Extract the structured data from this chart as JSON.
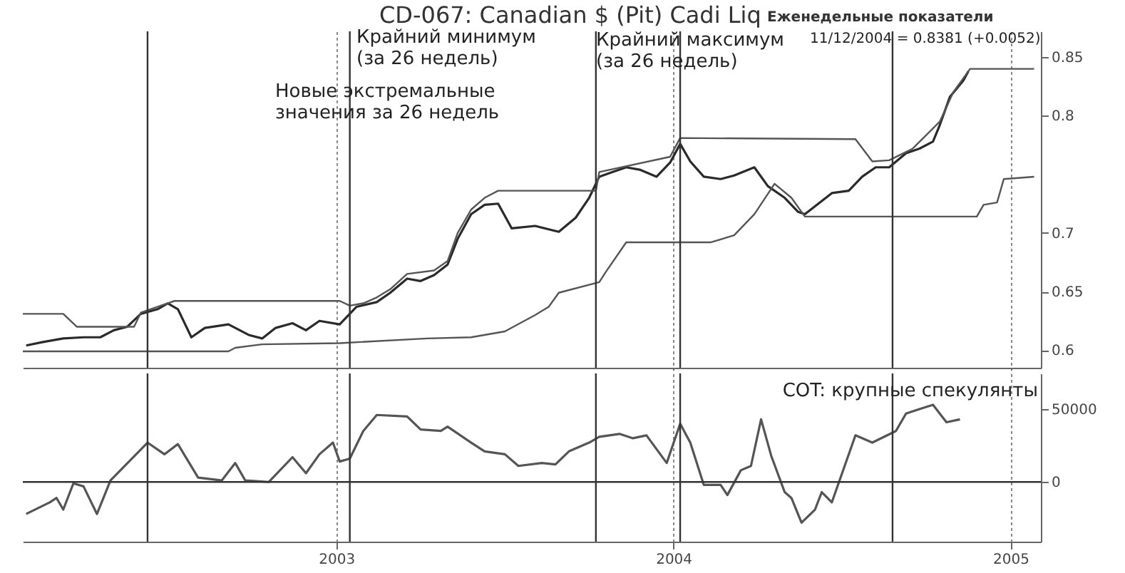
{
  "chart_data": [
    {
      "type": "line",
      "title": "CD-067:  Canadian $ (Pit) Cadi Liq",
      "subtitle": "Еженедельные показатели",
      "annotations": [
        "11/12/2004 = 0.8381 (+0.0052)",
        "Крайний минимум\n(за 26 недель)",
        "Крайний максимум\n(за 26 недель)",
        "Новые экстремальные\nзначения за 26 недель"
      ],
      "xlim": [
        2002.07,
        2005.09
      ],
      "xticks": [
        2003,
        2004,
        2005
      ],
      "ylim": [
        0.585,
        0.872
      ],
      "yticks": [
        0.6,
        0.65,
        0.7,
        0.8,
        0.85
      ],
      "grid": "x",
      "tick_labels": "y",
      "line_style": "solid",
      "ref_lines": [
        {
          "axis": "x",
          "value": 2002.44,
          "color": "#333333"
        },
        {
          "axis": "x",
          "value": 2003.04,
          "color": "#333333"
        },
        {
          "axis": "x",
          "value": 2003.77,
          "color": "#333333"
        },
        {
          "axis": "x",
          "value": 2004.02,
          "color": "#333333"
        },
        {
          "axis": "x",
          "value": 2004.65,
          "color": "#333333"
        }
      ],
      "series": [
        {
          "color": "#2a2a2a",
          "x": [
            2002.08,
            2002.13,
            2002.19,
            2002.25,
            2002.3,
            2002.34,
            2002.38,
            2002.42,
            2002.47,
            2002.5,
            2002.53,
            2002.57,
            2002.61,
            2002.68,
            2002.74,
            2002.78,
            2002.82,
            2002.87,
            2002.91,
            2002.95,
            2003.01,
            2003.06,
            2003.12,
            2003.16,
            2003.21,
            2003.25,
            2003.29,
            2003.33,
            2003.36,
            2003.4,
            2003.44,
            2003.48,
            2003.52,
            2003.59,
            2003.66,
            2003.71,
            2003.75,
            2003.78,
            2003.82,
            2003.86,
            2003.9,
            2003.95,
            2003.99,
            2004.02,
            2004.05,
            2004.09,
            2004.14,
            2004.18,
            2004.24,
            2004.28,
            2004.33,
            2004.37,
            2004.39,
            2004.43,
            2004.47,
            2004.52,
            2004.56,
            2004.6,
            2004.64,
            2004.69,
            2004.73,
            2004.77,
            2004.79,
            2004.82,
            2004.86,
            2004.875
          ],
          "values": [
            0.604,
            0.607,
            0.61,
            0.611,
            0.611,
            0.617,
            0.62,
            0.631,
            0.635,
            0.64,
            0.635,
            0.611,
            0.619,
            0.622,
            0.613,
            0.61,
            0.619,
            0.623,
            0.617,
            0.625,
            0.622,
            0.637,
            0.641,
            0.649,
            0.661,
            0.659,
            0.664,
            0.673,
            0.695,
            0.716,
            0.724,
            0.725,
            0.704,
            0.706,
            0.701,
            0.713,
            0.73,
            0.748,
            0.752,
            0.756,
            0.754,
            0.748,
            0.76,
            0.776,
            0.761,
            0.748,
            0.746,
            0.749,
            0.756,
            0.74,
            0.73,
            0.718,
            0.716,
            0.725,
            0.734,
            0.736,
            0.748,
            0.756,
            0.756,
            0.768,
            0.772,
            0.778,
            0.792,
            0.816,
            0.83,
            0.838
          ]
        },
        {
          "color": "#555555",
          "x": [
            2002.07,
            2002.19,
            2002.23,
            2002.4,
            2002.42,
            2002.47,
            2002.52,
            2003.01,
            2003.04,
            2003.08,
            2003.12,
            2003.16,
            2003.21,
            2003.29,
            2003.33,
            2003.36,
            2003.4,
            2003.44,
            2003.48,
            2003.77,
            2003.78,
            2003.99,
            2004.02,
            2004.54,
            2004.59,
            2004.64,
            2004.71,
            2004.79,
            2004.83,
            2004.88,
            2005.07
          ],
          "values": [
            0.631,
            0.631,
            0.62,
            0.62,
            0.632,
            0.637,
            0.642,
            0.642,
            0.638,
            0.64,
            0.645,
            0.652,
            0.665,
            0.668,
            0.676,
            0.7,
            0.72,
            0.73,
            0.736,
            0.736,
            0.752,
            0.765,
            0.781,
            0.78,
            0.761,
            0.762,
            0.772,
            0.795,
            0.82,
            0.84,
            0.84
          ]
        },
        {
          "color": "#555555",
          "x": [
            2002.07,
            2002.68,
            2002.7,
            2002.78,
            2003.01,
            2003.27,
            2003.4,
            2003.5,
            2003.59,
            2003.63,
            2003.66,
            2003.78,
            2003.8,
            2003.86,
            2004.11,
            2004.18,
            2004.24,
            2004.3,
            2004.35,
            2004.39,
            2004.9,
            2004.92,
            2004.96,
            2004.98,
            2005.07
          ],
          "values": [
            0.599,
            0.599,
            0.602,
            0.605,
            0.606,
            0.61,
            0.611,
            0.616,
            0.63,
            0.637,
            0.649,
            0.658,
            0.667,
            0.692,
            0.692,
            0.698,
            0.716,
            0.742,
            0.73,
            0.714,
            0.714,
            0.724,
            0.726,
            0.746,
            0.748
          ]
        }
      ]
    },
    {
      "type": "line",
      "annotations": [
        "COT: крупные спекулянты"
      ],
      "xlim": [
        2002.07,
        2005.09
      ],
      "xticks": [
        2003,
        2004,
        2005
      ],
      "ylim": [
        -41000,
        74500
      ],
      "yticks": [
        0,
        50000
      ],
      "grid": "x",
      "line_style": "solid",
      "ref_lines": [
        {
          "axis": "y",
          "value": 0,
          "color": "#333333"
        },
        {
          "axis": "x",
          "value": 2002.44,
          "color": "#333333"
        },
        {
          "axis": "x",
          "value": 2003.04,
          "color": "#333333"
        },
        {
          "axis": "x",
          "value": 2003.77,
          "color": "#333333"
        },
        {
          "axis": "x",
          "value": 2004.02,
          "color": "#333333"
        },
        {
          "axis": "x",
          "value": 2004.65,
          "color": "#333333"
        }
      ],
      "series": [
        {
          "color": "#555555",
          "x": [
            2002.08,
            2002.15,
            2002.17,
            2002.19,
            2002.22,
            2002.25,
            2002.29,
            2002.33,
            2002.44,
            2002.49,
            2002.53,
            2002.59,
            2002.66,
            2002.7,
            2002.73,
            2002.8,
            2002.87,
            2002.91,
            2002.95,
            2002.99,
            2003.01,
            2003.04,
            2003.08,
            2003.12,
            2003.21,
            2003.25,
            2003.31,
            2003.33,
            2003.4,
            2003.44,
            2003.5,
            2003.54,
            2003.61,
            2003.65,
            2003.69,
            2003.75,
            2003.78,
            2003.84,
            2003.88,
            2003.92,
            2003.98,
            2004.02,
            2004.05,
            2004.09,
            2004.14,
            2004.16,
            2004.2,
            2004.23,
            2004.26,
            2004.29,
            2004.33,
            2004.35,
            2004.38,
            2004.42,
            2004.44,
            2004.47,
            2004.54,
            2004.59,
            2004.66,
            2004.69,
            2004.73,
            2004.77,
            2004.81,
            2004.85
          ],
          "values": [
            -22000,
            -14000,
            -11000,
            -19000,
            -1000,
            -3000,
            -22000,
            1000,
            27000,
            19000,
            26000,
            3000,
            1000,
            13000,
            1000,
            0,
            17000,
            6000,
            19000,
            27000,
            14000,
            16000,
            35000,
            46000,
            45000,
            36000,
            35000,
            38000,
            27000,
            21000,
            19000,
            11000,
            13000,
            12000,
            21000,
            27000,
            31000,
            33000,
            30000,
            32000,
            13000,
            40000,
            27000,
            -2000,
            -2000,
            -9000,
            8000,
            11000,
            43000,
            18000,
            -7000,
            -11000,
            -28000,
            -19000,
            -7000,
            -14000,
            32000,
            27000,
            35000,
            47000,
            50000,
            53000,
            41000,
            43000
          ]
        }
      ]
    }
  ]
}
